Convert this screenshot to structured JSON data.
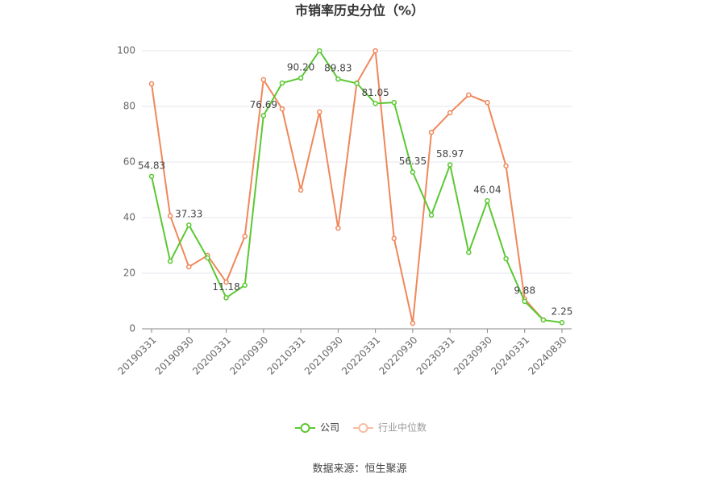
{
  "chart_data": {
    "type": "line",
    "title": "市销率历史分位（%）",
    "categories": [
      "20190331",
      null,
      "20190930",
      null,
      "20200331",
      null,
      "20200930",
      null,
      "20210331",
      null,
      "20210930",
      null,
      "20220331",
      null,
      "20220930",
      null,
      "20230331",
      null,
      "20230930",
      null,
      "20240331",
      null,
      "20240830"
    ],
    "series": [
      {
        "name": "公司",
        "color": "#5ac832",
        "values": [
          54.83,
          24.3,
          37.33,
          25.5,
          11.18,
          15.7,
          76.69,
          88.4,
          90.2,
          100,
          89.83,
          88.3,
          81.05,
          81.4,
          56.35,
          40.9,
          58.97,
          27.5,
          46.04,
          25.2,
          9.88,
          3.2,
          2.25
        ],
        "value_labels": [
          "54.83",
          null,
          "37.33",
          null,
          "11.18",
          null,
          "76.69",
          null,
          "90.20",
          null,
          "89.83",
          null,
          "81.05",
          null,
          "56.35",
          null,
          "58.97",
          null,
          "46.04",
          null,
          "9.88",
          null,
          "2.25"
        ]
      },
      {
        "name": "行业中位数",
        "color": "#f0875a",
        "values": [
          88.1,
          40.6,
          22.3,
          26.4,
          16.8,
          33.3,
          89.6,
          79.1,
          49.9,
          78.0,
          36.2,
          88.4,
          100,
          32.5,
          2.0,
          70.7,
          77.7,
          84.1,
          81.4,
          58.6,
          10.7,
          3.2,
          null
        ]
      }
    ],
    "ylim": [
      0,
      100
    ],
    "yticks": [
      0,
      20,
      40,
      60,
      80,
      100
    ],
    "grid": true,
    "source": "数据来源：恒生聚源"
  }
}
